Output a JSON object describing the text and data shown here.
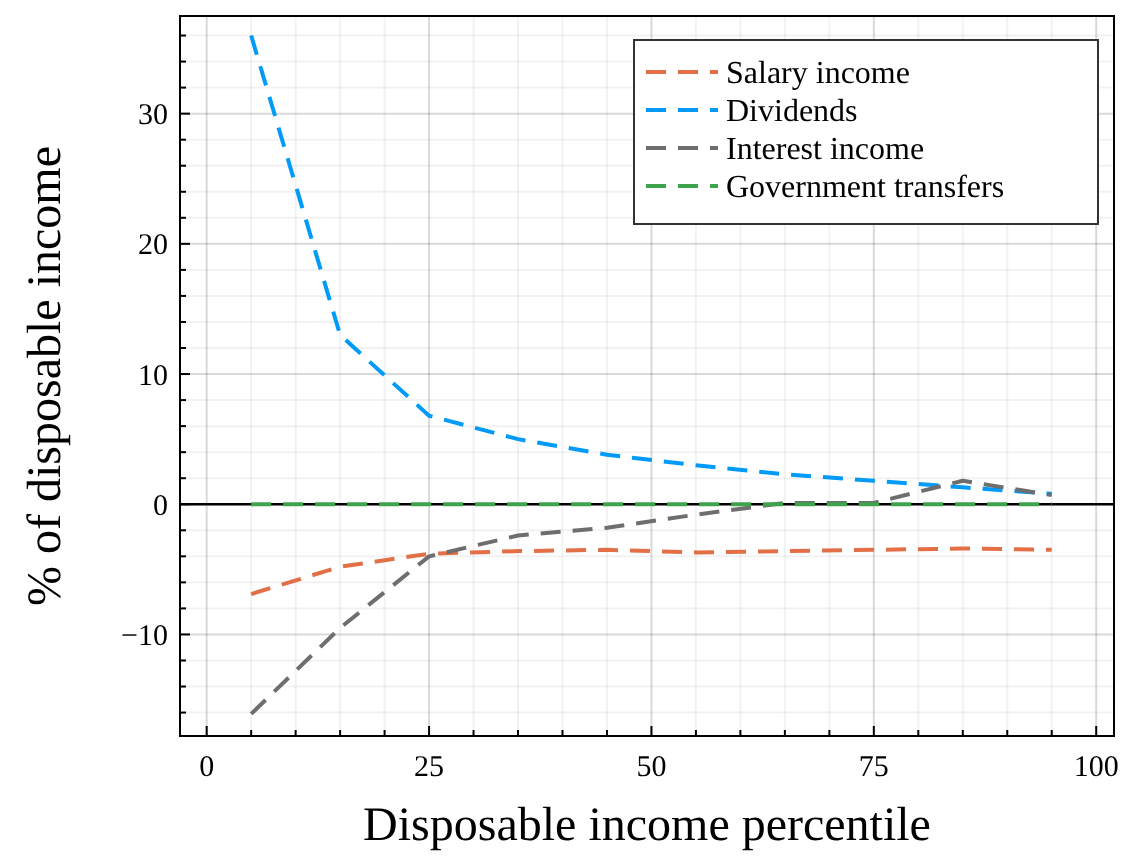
{
  "chart_data": {
    "type": "line",
    "xlabel": "Disposable income percentile",
    "ylabel": "% of disposable income",
    "x": [
      5,
      15,
      25,
      35,
      45,
      55,
      65,
      75,
      85,
      95
    ],
    "series": [
      {
        "name": "Salary income",
        "color": "#e26f46",
        "values": [
          -6.9,
          -4.8,
          -3.8,
          -3.6,
          -3.5,
          -3.7,
          -3.6,
          -3.5,
          -3.4,
          -3.5
        ]
      },
      {
        "name": "Dividends",
        "color": "#009af9",
        "values": [
          36,
          13,
          6.8,
          5.0,
          3.8,
          3.0,
          2.3,
          1.8,
          1.3,
          0.8
        ]
      },
      {
        "name": "Interest income",
        "color": "#6e6e6e",
        "values": [
          -16.1,
          -9.5,
          -4.0,
          -2.4,
          -1.8,
          -0.8,
          0.1,
          0.1,
          1.8,
          0.7
        ]
      },
      {
        "name": "Government transfers",
        "color": "#3da44d",
        "values": [
          0,
          0,
          0,
          0,
          0,
          0,
          0,
          0,
          0,
          0
        ]
      }
    ],
    "xlim": [
      -3,
      102
    ],
    "ylim": [
      -17.8,
      37.5
    ],
    "xticks": [
      0,
      25,
      50,
      75,
      100
    ],
    "yticks": [
      {
        "value": -10,
        "label": "−10"
      },
      0,
      10,
      20,
      30
    ],
    "ref_lines": [
      {
        "axis": "y",
        "value": 0,
        "color": "#000000"
      }
    ],
    "grid": true,
    "legend": "top right",
    "line_style": "dashed",
    "marker": "none"
  }
}
